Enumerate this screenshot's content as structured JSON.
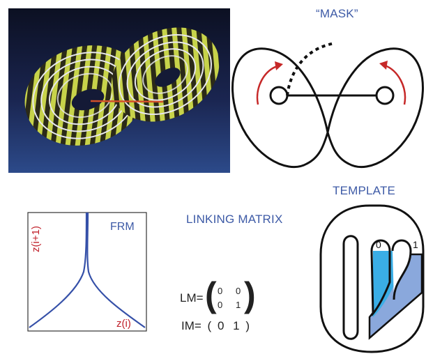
{
  "mask": {
    "title": "“MASK”"
  },
  "template": {
    "title": "TEMPLATE",
    "branch_left": "0",
    "branch_right": "1",
    "colors": {
      "outline": "#111111",
      "branch0": "#3aaee6",
      "branch1": "#8aa8dc"
    }
  },
  "frm": {
    "label": "FRM",
    "ylabel": "z(i+1)",
    "xlabel": "z(i)",
    "colors": {
      "curve": "#3550a8",
      "label_red": "#c0202a",
      "label_blue": "#3d5aa6"
    }
  },
  "linking": {
    "title": "LINKING MATRIX",
    "lm_prefix": "LM=",
    "lm_values": [
      [
        "0",
        "0"
      ],
      [
        "0",
        "1"
      ]
    ],
    "im_prefix": "IM=",
    "im_open": "(",
    "im_values": [
      "0",
      "1"
    ],
    "im_close": ")"
  },
  "photo": {
    "colors": {
      "background": "#1f2c5c",
      "band_light": "#c9d64a",
      "band_dark": "#2a2a1a",
      "ring": "#e8e8ef",
      "segment": "#d2502a"
    }
  },
  "arrows": {
    "color": "#c62828"
  }
}
